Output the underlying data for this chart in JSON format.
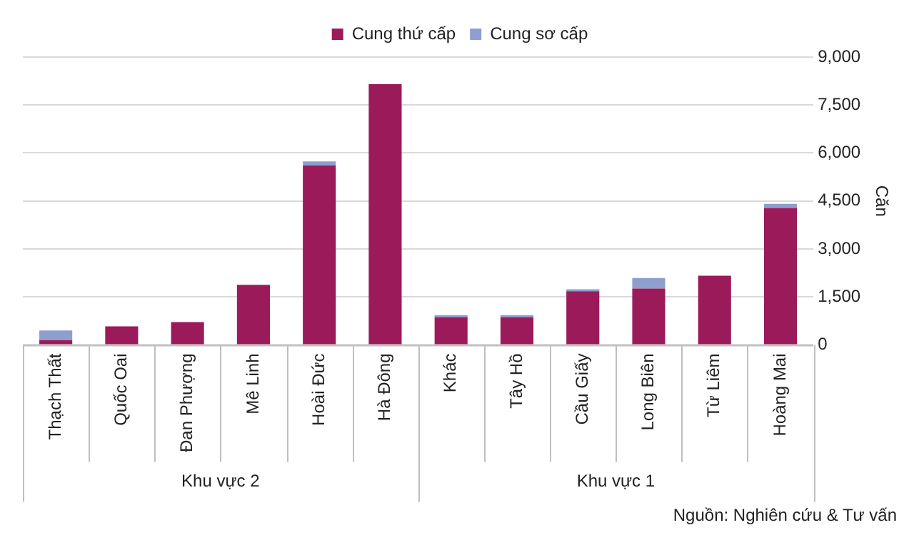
{
  "chart_data": {
    "type": "bar",
    "stacked": true,
    "ylabel": "Căn",
    "categories": [
      "Thạch Thất",
      "Quốc Oai",
      "Đan Phượng",
      "Mê Linh",
      "Hoài Đức",
      "Hà Đông",
      "Khác",
      "Tây Hồ",
      "Cầu Giấy",
      "Long Biên",
      "Từ Liêm",
      "Hoàng Mai"
    ],
    "series": [
      {
        "name": "Cung thứ cấp",
        "color": "#9b1b5a",
        "values": [
          150,
          580,
          710,
          1880,
          5610,
          8150,
          870,
          870,
          1680,
          1760,
          2160,
          4280
        ]
      },
      {
        "name": "Cung sơ cấp",
        "color": "#8e9fcf",
        "values": [
          300,
          0,
          0,
          0,
          130,
          0,
          60,
          60,
          60,
          330,
          0,
          130
        ]
      }
    ],
    "ylim": [
      0,
      9000
    ],
    "yticks": [
      0,
      {
        "value": 1500,
        "label": "1,500"
      },
      {
        "value": 3000,
        "label": "3,000"
      },
      {
        "value": 4500,
        "label": "4,500"
      },
      {
        "value": 6000,
        "label": "6,000"
      },
      {
        "value": 7500,
        "label": "7,500"
      },
      {
        "value": 9000,
        "label": "9,000"
      }
    ],
    "grid": "y",
    "legend": "top",
    "annotations": [
      "Khu vực 2",
      "Khu vực 1",
      "Nguồn: Nghiên cứu & Tư vấn"
    ]
  }
}
